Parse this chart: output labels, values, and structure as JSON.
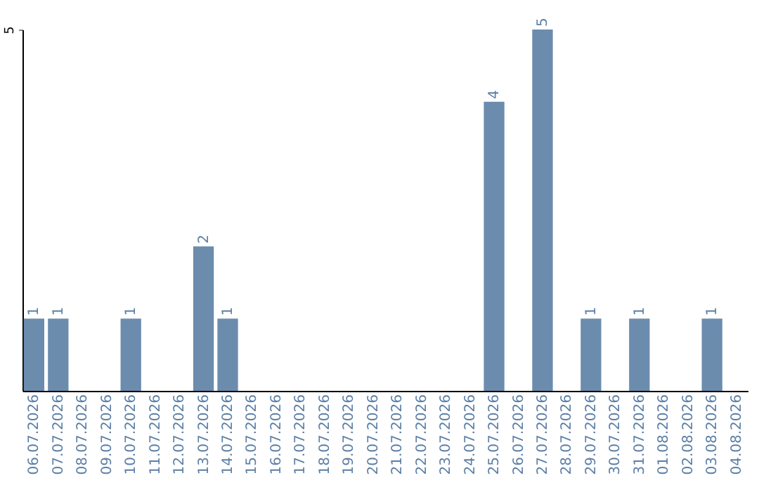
{
  "chart_data": {
    "type": "bar",
    "categories": [
      "06.07.2026",
      "07.07.2026",
      "08.07.2026",
      "09.07.2026",
      "10.07.2026",
      "11.07.2026",
      "12.07.2026",
      "13.07.2026",
      "14.07.2026",
      "15.07.2026",
      "16.07.2026",
      "17.07.2026",
      "18.07.2026",
      "19.07.2026",
      "20.07.2026",
      "21.07.2026",
      "22.07.2026",
      "23.07.2026",
      "24.07.2026",
      "25.07.2026",
      "26.07.2026",
      "27.07.2026",
      "28.07.2026",
      "29.07.2026",
      "30.07.2026",
      "31.07.2026",
      "01.08.2026",
      "02.08.2026",
      "03.08.2026",
      "04.08.2026"
    ],
    "values": [
      1,
      1,
      null,
      null,
      1,
      null,
      null,
      2,
      1,
      null,
      null,
      null,
      null,
      null,
      null,
      null,
      null,
      null,
      null,
      4,
      null,
      5,
      null,
      1,
      null,
      1,
      null,
      null,
      1,
      null
    ],
    "color": "#6b8cad",
    "ylim": [
      0,
      5
    ],
    "yticks": [
      5
    ],
    "data_labels": true
  }
}
